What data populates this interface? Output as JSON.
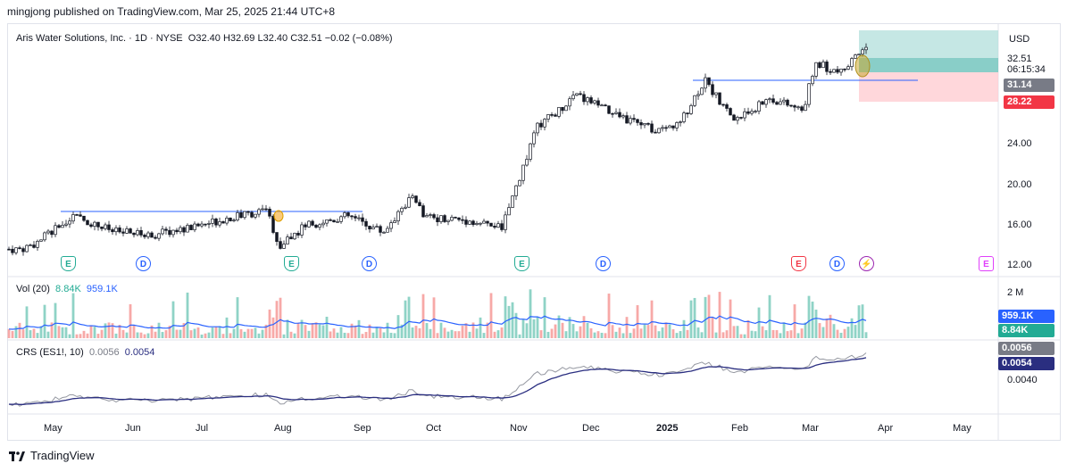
{
  "header": {
    "publisher": "mingjong published on TradingView.com, Mar 25, 2025 21:44 UTC+8"
  },
  "legend": {
    "symbol": "Aris Water Solutions, Inc. · 1D · NYSE",
    "open_label": "O",
    "open": "32.40",
    "high_label": "H",
    "high": "32.69",
    "low_label": "L",
    "low": "32.40",
    "close_label": "C",
    "close": "32.51",
    "change": "−0.02 (−0.08%)"
  },
  "price_axis": {
    "currency": "USD",
    "ticks": [
      "24.00",
      "20.00",
      "16.00",
      "12.00"
    ],
    "last_price": "32.51",
    "countdown": "06:15:34",
    "level_1": "31.14",
    "level_2": "28.22"
  },
  "volume": {
    "title": "Vol (20)",
    "value": "8.84K",
    "ma_value": "959.1K",
    "axis_tick": "2 M",
    "badge_ma": "959.1K",
    "badge_value": "8.84K"
  },
  "crs": {
    "title": "CRS (ES1!, 10)",
    "value": "0.0056",
    "ma_value": "0.0054",
    "axis_tick": "0.0040",
    "badge_value": "0.0056",
    "badge_ma": "0.0054"
  },
  "time_axis": [
    "May",
    "Jun",
    "Jul",
    "Aug",
    "Sep",
    "Oct",
    "Nov",
    "Dec",
    "2025",
    "Feb",
    "Mar",
    "Apr",
    "May"
  ],
  "events": [
    "E",
    "D",
    "E",
    "D",
    "E",
    "D",
    "E",
    "D",
    "E"
  ],
  "footer": {
    "brand": "TradingView"
  },
  "colors": {
    "up": "#22ab94",
    "down": "#f23645",
    "vol_up": "#8fd3c6",
    "vol_down": "#f7a9a7",
    "ma": "#2962ff",
    "crs_line": "#9598a1",
    "crs_ma": "#2a2e80"
  },
  "chart_data": {
    "type": "line",
    "title": "Aris Water Solutions, Inc. · 1D · NYSE",
    "x": [
      "2024-04-25",
      "2024-05-01",
      "2024-05-15",
      "2024-06-01",
      "2024-06-15",
      "2024-07-01",
      "2024-07-15",
      "2024-07-31",
      "2024-08-05",
      "2024-08-15",
      "2024-09-01",
      "2024-09-15",
      "2024-09-27",
      "2024-10-01",
      "2024-10-15",
      "2024-11-01",
      "2024-11-07",
      "2024-11-15",
      "2024-12-01",
      "2024-12-15",
      "2025-01-01",
      "2025-01-10",
      "2025-01-20",
      "2025-02-01",
      "2025-02-15",
      "2025-02-28",
      "2025-03-05",
      "2025-03-15",
      "2025-03-25"
    ],
    "series": [
      {
        "values": [
          13.4,
          14.0,
          16.5,
          15.0,
          14.7,
          15.4,
          16.3,
          17.0,
          13.6,
          15.6,
          16.5,
          15.0,
          18.6,
          16.4,
          16.2,
          15.4,
          19.5,
          24.8,
          27.8,
          26.0,
          24.5,
          25.0,
          29.2,
          25.4,
          27.5,
          26.3,
          30.8,
          29.8,
          32.51
        ]
      }
    ],
    "ylim": [
      12,
      33.5
    ],
    "yticks": [
      12,
      16,
      20,
      24
    ],
    "resistance_levels": [
      17.0,
      29.8
    ],
    "position_box": {
      "entry": 31.14,
      "stop": 28.22,
      "target": 35.0
    },
    "volume": {
      "ma_last": 959100,
      "last": 8840,
      "ylim": [
        0,
        2000000
      ]
    },
    "crs_indicator": {
      "last": 0.0056,
      "ma_last": 0.0054
    }
  }
}
